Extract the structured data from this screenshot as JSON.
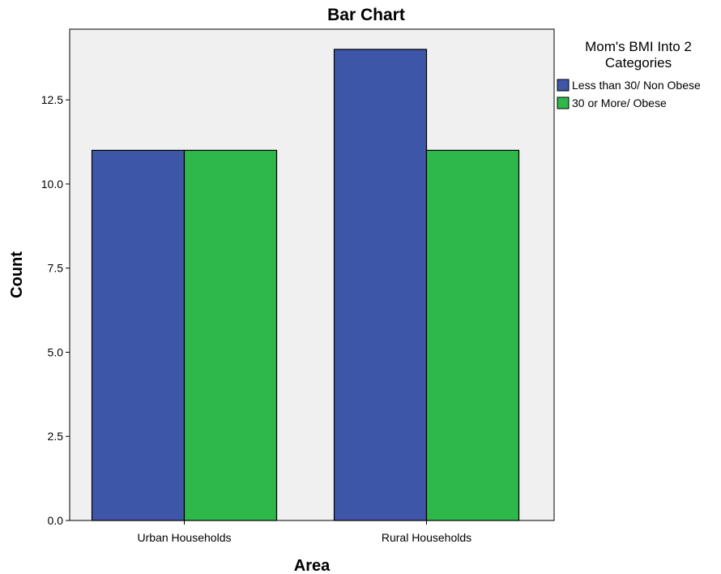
{
  "chart_data": {
    "type": "bar",
    "title": "Bar Chart",
    "xlabel": "Area",
    "ylabel": "Count",
    "categories": [
      "Urban Households",
      "Rural Households"
    ],
    "series": [
      {
        "name": "Less than 30/ Non Obese",
        "values": [
          11,
          14
        ],
        "color": "#3d56a8"
      },
      {
        "name": "30 or More/ Obese",
        "values": [
          11,
          11
        ],
        "color": "#2eb84a"
      }
    ],
    "ylim": [
      0,
      14.6
    ],
    "yticks": [
      "0.0",
      "2.5",
      "5.0",
      "7.5",
      "10.0",
      "12.5"
    ],
    "ytick_values": [
      0,
      2.5,
      5,
      7.5,
      10,
      12.5
    ],
    "legend": {
      "title_line1": "Mom's BMI Into 2",
      "title_line2": "Categories",
      "placement": "right"
    },
    "plot_background": "#f0f0f0",
    "grid": false
  }
}
